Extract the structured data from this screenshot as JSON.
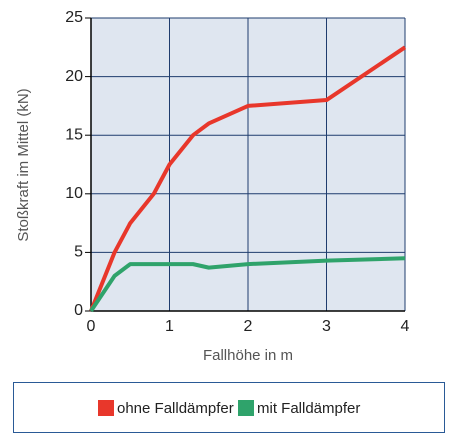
{
  "chart_data": {
    "type": "line",
    "xlabel": "Fallhöhe in m",
    "ylabel": "Stoßkraft im Mittel (kN)",
    "series": [
      {
        "name": "ohne Falldämpfer",
        "color": "#e8372b",
        "x": [
          0,
          0.3,
          0.5,
          0.8,
          1,
          1.3,
          1.5,
          2,
          3,
          4
        ],
        "values": [
          0,
          5,
          7.5,
          10,
          12.5,
          15,
          16,
          17.5,
          18,
          22.5
        ]
      },
      {
        "name": "mit Falldämpfer",
        "color": "#2fa36b",
        "x": [
          0,
          0.3,
          0.5,
          1,
          1.3,
          1.5,
          2,
          3,
          4
        ],
        "values": [
          0,
          3,
          4,
          4,
          4,
          3.7,
          4,
          4.3,
          4.5
        ]
      }
    ],
    "xlim": [
      0,
      4
    ],
    "xticks": [
      0,
      1,
      2,
      3,
      4
    ],
    "ylim": [
      0,
      25
    ],
    "yticks": [
      0,
      5,
      10,
      15,
      20,
      25
    ],
    "grid": true,
    "legend": "bottom"
  }
}
